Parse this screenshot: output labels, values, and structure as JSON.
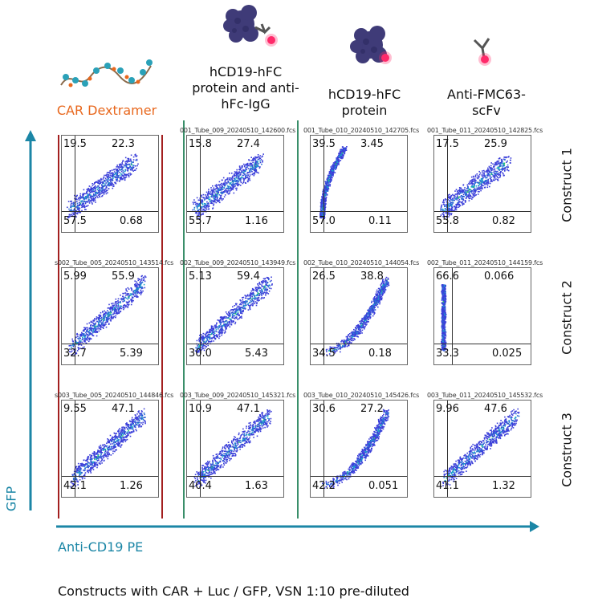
{
  "columns": [
    {
      "label": "CAR Dextramer",
      "icon": "dextramer-icon",
      "color": "#e8681e"
    },
    {
      "label": "hCD19-hFC protein and anti-hFc-IgG",
      "icon": "protein-antibody-icon"
    },
    {
      "label": "hCD19-hFC protein",
      "icon": "protein-icon"
    },
    {
      "label": "Anti-FMC63-scFv",
      "icon": "antibody-icon"
    }
  ],
  "rows": [
    {
      "label": "Construct 1"
    },
    {
      "label": "Construct 2"
    },
    {
      "label": "Construct 3"
    }
  ],
  "axes": {
    "y_label": "GFP",
    "x_label": "Anti-CD19 PE",
    "color": "#1b86a6"
  },
  "footer": "Constructs with CAR + Luc / GFP, VSN 1:10 pre-diluted",
  "divider_colors": {
    "dextramer": "#a31f1f",
    "columns": "#3a8f6a"
  },
  "plots": [
    [
      {
        "title": "",
        "ul": "19.5",
        "ur": "22.3",
        "ll": "57.5",
        "lr": "0.68",
        "shape": "diag-low"
      },
      {
        "title": "001_Tube_009_20240510_142600.fcs",
        "ul": "15.8",
        "ur": "27.4",
        "ll": "55.7",
        "lr": "1.16",
        "shape": "diag-low"
      },
      {
        "title": "001_Tube_010_20240510_142705.fcs",
        "ul": "39.5",
        "ur": "3.45",
        "ll": "57.0",
        "lr": "0.11",
        "shape": "vertical"
      },
      {
        "title": "001_Tube_011_20240510_142825.fcs",
        "ul": "17.5",
        "ur": "25.9",
        "ll": "55.8",
        "lr": "0.82",
        "shape": "diag-low"
      }
    ],
    [
      {
        "title": "s002_Tube_005_20240510_143514.fcs",
        "ul": "5.99",
        "ur": "55.9",
        "ll": "32.7",
        "lr": "5.39",
        "shape": "diag"
      },
      {
        "title": "002_Tube_009_20240510_143949.fcs",
        "ul": "5.13",
        "ur": "59.4",
        "ll": "30.0",
        "lr": "5.43",
        "shape": "diag"
      },
      {
        "title": "002_Tube_010_20240510_144054.fcs",
        "ul": "26.5",
        "ur": "38.8",
        "ll": "34.5",
        "lr": "0.18",
        "shape": "curve"
      },
      {
        "title": "002_Tube_011_20240510_144159.fcs",
        "ul": "66.6",
        "ur": "0.066",
        "ll": "33.3",
        "lr": "0.025",
        "shape": "column"
      }
    ],
    [
      {
        "title": "s003_Tube_005_20240510_144846.fcs",
        "ul": "9.55",
        "ur": "47.1",
        "ll": "42.1",
        "lr": "1.26",
        "shape": "diag"
      },
      {
        "title": "003_Tube_009_20240510_145321.fcs",
        "ul": "10.9",
        "ur": "47.1",
        "ll": "40.4",
        "lr": "1.63",
        "shape": "diag"
      },
      {
        "title": "003_Tube_010_20240510_145426.fcs",
        "ul": "30.6",
        "ur": "27.2",
        "ll": "42.2",
        "lr": "0.051",
        "shape": "curve"
      },
      {
        "title": "003_Tube_011_20240510_145532.fcs",
        "ul": "9.96",
        "ur": "47.6",
        "ll": "41.1",
        "lr": "1.32",
        "shape": "diag"
      }
    ]
  ]
}
